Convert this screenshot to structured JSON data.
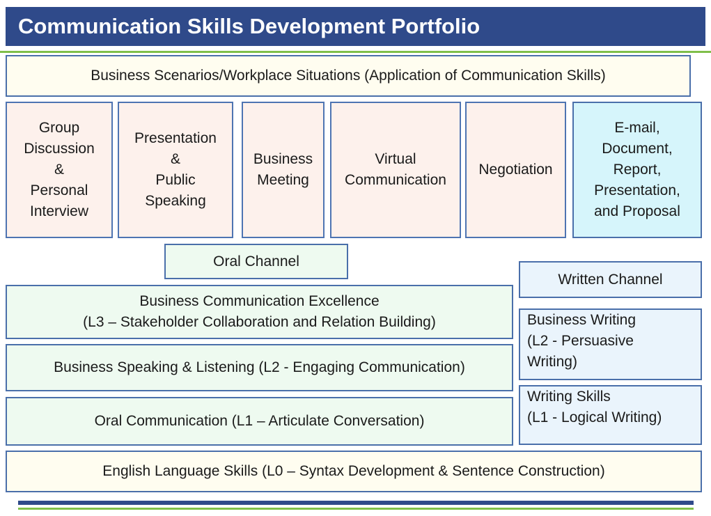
{
  "title": "Communication Skills Development Portfolio",
  "scenarios_header": "Business Scenarios/Workplace Situations (Application of Communication Skills)",
  "scenarios": [
    {
      "lines": [
        "Group",
        "Discussion",
        "&",
        "Personal",
        "Interview"
      ]
    },
    {
      "lines": [
        "Presentation",
        "&",
        "Public",
        "Speaking"
      ]
    },
    {
      "lines": [
        "Business",
        "Meeting"
      ]
    },
    {
      "lines": [
        "Virtual",
        "Communication"
      ]
    },
    {
      "lines": [
        "Negotiation"
      ]
    },
    {
      "lines": [
        "E-mail,",
        "Document,",
        "Report,",
        "Presentation,",
        "and Proposal"
      ]
    }
  ],
  "oral_channel": "Oral Channel",
  "written_channel": "Written Channel",
  "oral_levels": {
    "l3_title": "Business Communication Excellence",
    "l3_sub": "(L3 – Stakeholder Collaboration and Relation Building)",
    "l2": "Business Speaking & Listening (L2 - Engaging Communication)",
    "l1": "Oral Communication (L1 – Articulate Conversation)"
  },
  "written_levels": {
    "l2_lines": [
      "Business Writing",
      "(L2 - Persuasive",
      "Writing)"
    ],
    "l1_lines": [
      "Writing Skills",
      "(L1 - Logical Writing)"
    ]
  },
  "foundation": "English Language Skills (L0 – Syntax Development & Sentence Construction)",
  "colors": {
    "title_bar": "#2f4a8a",
    "accent_green": "#7fbf4a",
    "scenario_fill": "#fdf1ec",
    "written_scenario_fill": "#d6f5fb",
    "oral_fill": "#eefaf0",
    "written_fill": "#eaf4fc",
    "header_fill": "#fffdf0"
  }
}
